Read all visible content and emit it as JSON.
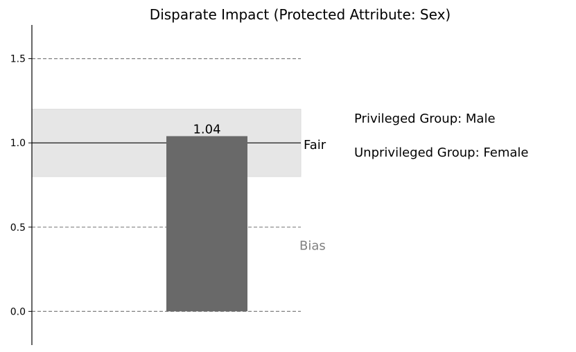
{
  "chart_data": {
    "type": "bar",
    "title": "Disparate Impact (Protected Attribute: Sex)",
    "values": [
      1.04
    ],
    "value_labels": [
      "1.04"
    ],
    "bar_color": "#696969",
    "ylim": [
      -0.2,
      1.7
    ],
    "yticks": [
      0.0,
      0.5,
      1.0,
      1.5
    ],
    "ytick_labels": [
      "0.0",
      "0.5",
      "1.0",
      "1.5"
    ],
    "dashed_lines": [
      0.0,
      0.5,
      1.5
    ],
    "dashed_color": "#808080",
    "fair_band": [
      0.8,
      1.2
    ],
    "fair_band_color": "#e6e6e6",
    "fair_line": 1.0,
    "fair_label": "Fair",
    "bias_label": "Bias",
    "bias_label_at": 0.39,
    "bias_color": "#808080",
    "xticks_visible": false,
    "annotations": [
      "Privileged Group: Male",
      "Unprivileged Group: Female"
    ]
  }
}
